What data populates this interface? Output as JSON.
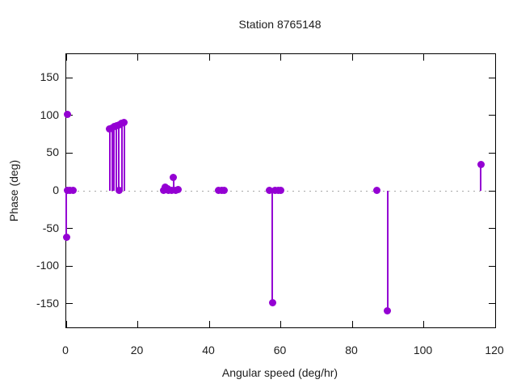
{
  "chart_data": {
    "type": "stem",
    "title": "Station 8765148",
    "xlabel": "Angular speed (deg/hr)",
    "ylabel": "Phase (deg)",
    "xlim": [
      0,
      120
    ],
    "ylim": [
      -181.5,
      181.5
    ],
    "x_ticks": [
      0,
      20,
      40,
      60,
      80,
      100,
      120
    ],
    "y_ticks": [
      -150,
      -100,
      -50,
      0,
      50,
      100,
      150
    ],
    "legend": "none",
    "grid": "dotted zero line only",
    "marker_color": "#9400d3",
    "axis_color": "#000000",
    "zero_line_color": "#a8a8a8",
    "background_color": "#ffffff",
    "points": [
      {
        "x": 0.1,
        "y": -62,
        "stem": true
      },
      {
        "x": 0.4,
        "y": 101,
        "stem": false
      },
      {
        "x": 0.3,
        "y": 1,
        "stem": false
      },
      {
        "x": 1.1,
        "y": 0.8,
        "stem": false
      },
      {
        "x": 1.9,
        "y": 0.8,
        "stem": false
      },
      {
        "x": 12.1,
        "y": 82,
        "stem": true
      },
      {
        "x": 12.8,
        "y": 83.5,
        "stem": true
      },
      {
        "x": 13.4,
        "y": 85,
        "stem": true
      },
      {
        "x": 14.1,
        "y": 86.5,
        "stem": true
      },
      {
        "x": 14.8,
        "y": 88,
        "stem": true
      },
      {
        "x": 15.5,
        "y": 89.5,
        "stem": true
      },
      {
        "x": 16.2,
        "y": 91,
        "stem": true
      },
      {
        "x": 14.8,
        "y": 0.5,
        "stem": false
      },
      {
        "x": 27.3,
        "y": 1,
        "stem": false
      },
      {
        "x": 27.7,
        "y": 5,
        "stem": false
      },
      {
        "x": 28.3,
        "y": 3,
        "stem": false
      },
      {
        "x": 28.7,
        "y": 0.7,
        "stem": false
      },
      {
        "x": 29.5,
        "y": 0.7,
        "stem": false
      },
      {
        "x": 30.0,
        "y": 18,
        "stem": true
      },
      {
        "x": 30.6,
        "y": 0.8,
        "stem": false
      },
      {
        "x": 31.3,
        "y": 1.3,
        "stem": false
      },
      {
        "x": 42.6,
        "y": 0.9,
        "stem": false
      },
      {
        "x": 43.4,
        "y": 0.9,
        "stem": false
      },
      {
        "x": 44.1,
        "y": 0.9,
        "stem": false
      },
      {
        "x": 56.9,
        "y": 0.8,
        "stem": false
      },
      {
        "x": 57.7,
        "y": -149,
        "stem": true
      },
      {
        "x": 58.5,
        "y": 1,
        "stem": false
      },
      {
        "x": 59.3,
        "y": 0.9,
        "stem": false
      },
      {
        "x": 59.9,
        "y": 1,
        "stem": false
      },
      {
        "x": 87.0,
        "y": 0.6,
        "stem": false
      },
      {
        "x": 89.9,
        "y": -160,
        "stem": true
      },
      {
        "x": 116.0,
        "y": 34.5,
        "stem": true
      }
    ]
  }
}
